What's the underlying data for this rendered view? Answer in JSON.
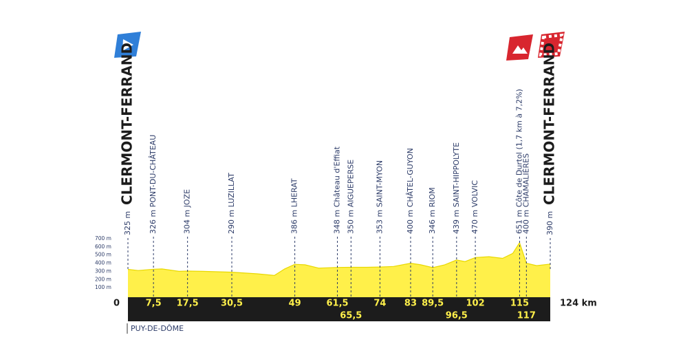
{
  "chart_data": {
    "type": "area",
    "x": [
      0,
      3,
      7.5,
      10,
      15,
      17.5,
      22,
      30.5,
      38,
      43,
      46,
      49,
      52,
      56,
      61.5,
      65.5,
      70,
      74,
      78,
      83,
      86,
      89.5,
      93,
      96.5,
      99,
      102,
      106,
      110,
      113,
      115,
      117,
      120,
      124
    ],
    "values": [
      325,
      310,
      326,
      330,
      300,
      304,
      300,
      290,
      270,
      250,
      330,
      386,
      380,
      340,
      348,
      350,
      350,
      353,
      360,
      400,
      380,
      346,
      380,
      439,
      420,
      470,
      480,
      460,
      520,
      651,
      400,
      370,
      390
    ],
    "color": "#fff04a",
    "xlim": [
      0,
      124
    ],
    "xticks": [
      0,
      {
        "value": 124,
        "label": "124 km"
      }
    ],
    "ylim": [
      0,
      700
    ],
    "yticks": [
      {
        "value": 100,
        "label": "100 m"
      },
      {
        "value": 200,
        "label": "200 m"
      },
      {
        "value": 300,
        "label": "300 m"
      },
      {
        "value": 400,
        "label": "400 m"
      },
      {
        "value": 500,
        "label": "500 m"
      },
      {
        "value": 600,
        "label": "600 m"
      },
      {
        "value": 700,
        "label": "700 m"
      }
    ],
    "start": {
      "altitude": "325 m",
      "name": "CLERMONT-FERRAND"
    },
    "finish": {
      "altitude": "390 m",
      "name": "CLERMONT-FERRAND"
    },
    "waypoints": [
      {
        "km": {
          "value": 7.5,
          "label": "7,5"
        },
        "label": "326 m PONT-DU-CHÂTEAU"
      },
      {
        "km": {
          "value": 17.5,
          "label": "17,5"
        },
        "label": "304 m JOZE"
      },
      {
        "km": {
          "value": 30.5,
          "label": "30,5"
        },
        "label": "290 m LUZILLAT"
      },
      {
        "km": {
          "value": 49,
          "label": "49"
        },
        "label": "386 m LHERAT"
      },
      {
        "km": {
          "value": 61.5,
          "label": "61,5"
        },
        "label": "348 m Château d'Effiat"
      },
      {
        "km": {
          "value": 65.5,
          "label": "65,5"
        },
        "label": "350 m AIGUEPERSE"
      },
      {
        "km": {
          "value": 74,
          "label": "74"
        },
        "label": "353 m SAINT-MYON"
      },
      {
        "km": {
          "value": 83,
          "label": "83"
        },
        "label": "400 m CHÂTEL-GUYON"
      },
      {
        "km": {
          "value": 89.5,
          "label": "89,5"
        },
        "label": "346 m RIOM"
      },
      {
        "km": {
          "value": 96.5,
          "label": "96,5"
        },
        "label": "439 m SAINT-HIPPOLYTE"
      },
      {
        "km": {
          "value": 102,
          "label": "102"
        },
        "label": "470 m VOLVIC"
      },
      {
        "km": {
          "value": 115,
          "label": "115"
        },
        "label": "651 m Côte de Durtol (1,7 km à 7,2%)"
      },
      {
        "km": {
          "value": 117,
          "label": "117"
        },
        "label": "400 m CHAMALIÈRES"
      }
    ],
    "footer": "PUY-DE-DÔME"
  }
}
